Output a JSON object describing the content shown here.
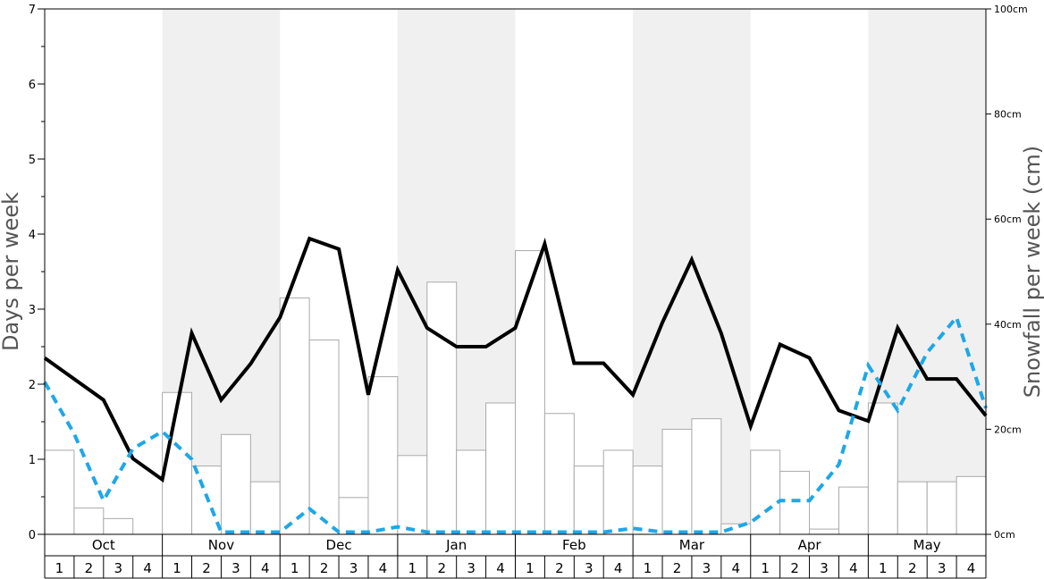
{
  "chart_data": {
    "type": "bar+line",
    "xlabel": "",
    "ylabel": "Days per week",
    "y2label": "Snowfall per week (cm)",
    "ylim": [
      0,
      7
    ],
    "y2lim": [
      0,
      100
    ],
    "yticks": [
      "0",
      "1",
      "2",
      "3",
      "4",
      "5",
      "6",
      "7"
    ],
    "y2ticks": [
      "0cm",
      "20cm",
      "40cm",
      "60cm",
      "80cm",
      "100cm"
    ],
    "months": [
      "Oct",
      "Nov",
      "Dec",
      "Jan",
      "Feb",
      "Mar",
      "Apr",
      "May"
    ],
    "week_labels": [
      "1",
      "2",
      "3",
      "4"
    ],
    "grid": false,
    "legend": "none",
    "colors": {
      "bar_fill": "#ffffff",
      "bar_stroke": "#aaaaaa",
      "band": "#f0f0f0",
      "solid_line": "#000000",
      "dashed_line": "#1ea7e8"
    },
    "series": [
      {
        "type": "bar",
        "axis": "right",
        "values": [
          16,
          5,
          3,
          0,
          27,
          13,
          19,
          10,
          45,
          37,
          7,
          30,
          15,
          48,
          16,
          25,
          54,
          23,
          13,
          16,
          13,
          20,
          22,
          2,
          16,
          12,
          1,
          9,
          25,
          10,
          10,
          11
        ]
      },
      {
        "type": "line",
        "style": "solid",
        "axis": "left",
        "values": [
          2.35,
          2.07,
          1.79,
          1.01,
          0.73,
          2.68,
          1.79,
          2.27,
          2.89,
          3.94,
          3.8,
          1.86,
          3.52,
          2.75,
          2.5,
          2.5,
          2.75,
          3.87,
          2.28,
          2.28,
          1.86,
          2.82,
          3.66,
          2.68,
          1.44,
          2.53,
          2.35,
          1.65,
          1.51,
          2.75,
          2.07,
          2.07,
          1.58
        ]
      },
      {
        "type": "line",
        "style": "dashed",
        "axis": "left",
        "values": [
          2.03,
          1.34,
          0.45,
          1.14,
          1.37,
          1.0,
          0.03,
          0.03,
          0.03,
          0.34,
          0.03,
          0.03,
          0.1,
          0.03,
          0.03,
          0.03,
          0.03,
          0.03,
          0.03,
          0.03,
          0.08,
          0.03,
          0.03,
          0.03,
          0.16,
          0.45,
          0.45,
          0.93,
          2.25,
          1.65,
          2.42,
          2.89,
          1.68
        ]
      }
    ]
  }
}
